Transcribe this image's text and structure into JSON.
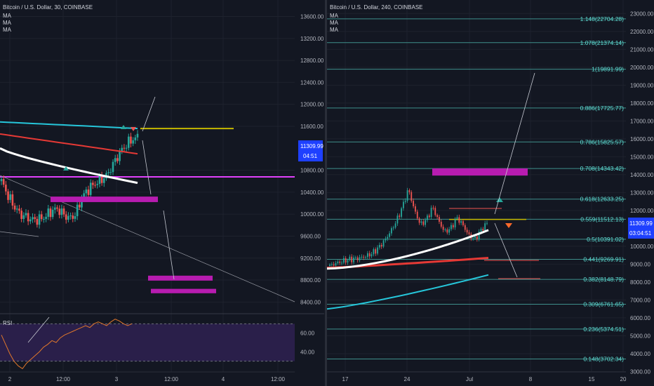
{
  "colors": {
    "background": "#131722",
    "grid": "#1e222d",
    "up": "#26a69a",
    "down": "#ef5350",
    "magenta": "#e040fb",
    "zone": "#b71cb0",
    "fib": "#3e8f8b",
    "fib_text": "#5fe0d6",
    "ma_fast": "#ffffff",
    "ma_mid": "#e53935",
    "ma_slow": "#26c6da",
    "resistance": "#c6b800",
    "last_price_bg": "#1e40ff",
    "rsi_band": "#2a1f4a",
    "rsi_line": "#e0772b"
  },
  "left_panel": {
    "title": "Bitcoin / U.S. Dollar, 30, COINBASE",
    "ma_labels": [
      "MA",
      "MA",
      "MA"
    ],
    "price_ticks": [
      "13600.00",
      "13200.00",
      "12800.00",
      "12400.00",
      "12000.00",
      "11600.00",
      "10800.00",
      "10400.00",
      "10000.00",
      "9600.00",
      "9200.00",
      "8800.00",
      "8400.00"
    ],
    "last_price": "11309.99",
    "countdown": "04:51",
    "time_ticks": [
      "2",
      "12:00",
      "3",
      "12:00",
      "4",
      "12:00"
    ],
    "rsi": {
      "label": "RSI",
      "ticks": [
        "60.00",
        "40.00"
      ]
    }
  },
  "right_panel": {
    "title": "Bitcoin / U.S. Dollar, 240, COINBASE",
    "ma_labels": [
      "MA",
      "MA",
      "MA"
    ],
    "price_ticks": [
      "23000.00",
      "22000.00",
      "21000.00",
      "20000.00",
      "19000.00",
      "18000.00",
      "17000.00",
      "16000.00",
      "15000.00",
      "14000.00",
      "13000.00",
      "12000.00",
      "10000.00",
      "9000.00",
      "8000.00",
      "7000.00",
      "6000.00",
      "5000.00",
      "4000.00",
      "3000.00"
    ],
    "last_price": "11309.99",
    "countdown": "03:04:51",
    "time_ticks": [
      "17",
      "24",
      "Jul",
      "8",
      "15",
      "20"
    ],
    "fib_levels": [
      {
        "ratio": "1.148",
        "price": "22704.28"
      },
      {
        "ratio": "1.078",
        "price": "21374.14"
      },
      {
        "ratio": "1",
        "price": "19891.99"
      },
      {
        "ratio": "0.886",
        "price": "17725.77"
      },
      {
        "ratio": "0.786",
        "price": "15825.57"
      },
      {
        "ratio": "0.708",
        "price": "14343.42"
      },
      {
        "ratio": "0.618",
        "price": "12633.25"
      },
      {
        "ratio": "0.559",
        "price": "11512.13"
      },
      {
        "ratio": "0.5",
        "price": "10391.02"
      },
      {
        "ratio": "0.441",
        "price": "9269.91"
      },
      {
        "ratio": "0.382",
        "price": "8148.79"
      },
      {
        "ratio": "0.309",
        "price": "6761.65"
      },
      {
        "ratio": "0.236",
        "price": "5374.51"
      },
      {
        "ratio": "0.148",
        "price": "3702.34"
      }
    ]
  },
  "chart_data": [
    {
      "type": "candlestick",
      "title": "Bitcoin / U.S. Dollar, 30, COINBASE",
      "timeframe": "30",
      "x_ticks": [
        "2",
        "12:00",
        "3",
        "12:00",
        "4",
        "12:00"
      ],
      "ylim": [
        8200,
        13900
      ],
      "y_ticks": [
        13600,
        13200,
        12800,
        12400,
        12000,
        11600,
        10800,
        10400,
        10000,
        9600,
        9200,
        8800,
        8400
      ],
      "last_price": 11309.99,
      "moving_averages": [
        {
          "color": "#26c6da",
          "start": 11680,
          "end": 11560
        },
        {
          "color": "#e53935",
          "start": 11460,
          "end": 11100
        },
        {
          "color": "#ffffff",
          "start": 11200,
          "end": 10570
        }
      ],
      "horizontal_lines": [
        {
          "price": 10680,
          "color": "#e040fb"
        }
      ],
      "resistance_line": 11560,
      "zones": [
        {
          "from": 10220,
          "to": 10320
        },
        {
          "from": 8790,
          "to": 8880
        },
        {
          "from": 8560,
          "to": 8640
        }
      ],
      "candle_path": [
        10600,
        10350,
        10150,
        10000,
        9950,
        9900,
        9900,
        9950,
        10050,
        10100,
        10000,
        9920,
        10000,
        10300,
        10450,
        10550,
        10620,
        10700,
        10900,
        11100,
        11250,
        11350,
        11400
      ],
      "rsi": {
        "ylim": [
          20,
          80
        ],
        "ticks": [
          60,
          40
        ],
        "bands": [
          70,
          30
        ],
        "path": [
          58,
          48,
          38,
          30,
          25,
          22,
          28,
          32,
          36,
          40,
          45,
          48,
          52,
          50,
          55,
          58,
          60,
          62,
          64,
          66,
          68,
          66,
          70,
          72,
          70,
          68,
          72,
          75,
          73,
          70,
          68,
          70
        ]
      }
    },
    {
      "type": "candlestick",
      "title": "Bitcoin / U.S. Dollar, 240, COINBASE",
      "timeframe": "240",
      "x_ticks": [
        "17",
        "24",
        "Jul",
        "8",
        "15",
        "20"
      ],
      "ylim": [
        2900,
        23600
      ],
      "y_ticks": [
        23000,
        22000,
        21000,
        20000,
        19000,
        18000,
        17000,
        16000,
        15000,
        14000,
        13000,
        12000,
        10000,
        9000,
        8000,
        7000,
        6000,
        5000,
        4000,
        3000
      ],
      "last_price": 11309.99,
      "fibonacci": [
        {
          "ratio": 1.148,
          "price": 22704.28
        },
        {
          "ratio": 1.078,
          "price": 21374.14
        },
        {
          "ratio": 1,
          "price": 19891.99
        },
        {
          "ratio": 0.886,
          "price": 17725.77
        },
        {
          "ratio": 0.786,
          "price": 15825.57
        },
        {
          "ratio": 0.708,
          "price": 14343.42
        },
        {
          "ratio": 0.618,
          "price": 12633.25
        },
        {
          "ratio": 0.559,
          "price": 11512.13
        },
        {
          "ratio": 0.5,
          "price": 10391.02
        },
        {
          "ratio": 0.441,
          "price": 9269.91
        },
        {
          "ratio": 0.382,
          "price": 8148.79
        },
        {
          "ratio": 0.309,
          "price": 6761.65
        },
        {
          "ratio": 0.236,
          "price": 5374.51
        },
        {
          "ratio": 0.148,
          "price": 3702.34
        }
      ],
      "zones": [
        {
          "from": 13950,
          "to": 14350
        }
      ],
      "resistance_line": 11500,
      "candle_path": [
        8900,
        9050,
        9150,
        9250,
        9300,
        9350,
        9450,
        9600,
        9900,
        10300,
        10800,
        11400,
        12200,
        13200,
        12000,
        11200,
        11500,
        12200,
        11400,
        10800,
        11000,
        11600,
        11200,
        10600,
        10400,
        10900,
        11300
      ]
    }
  ]
}
